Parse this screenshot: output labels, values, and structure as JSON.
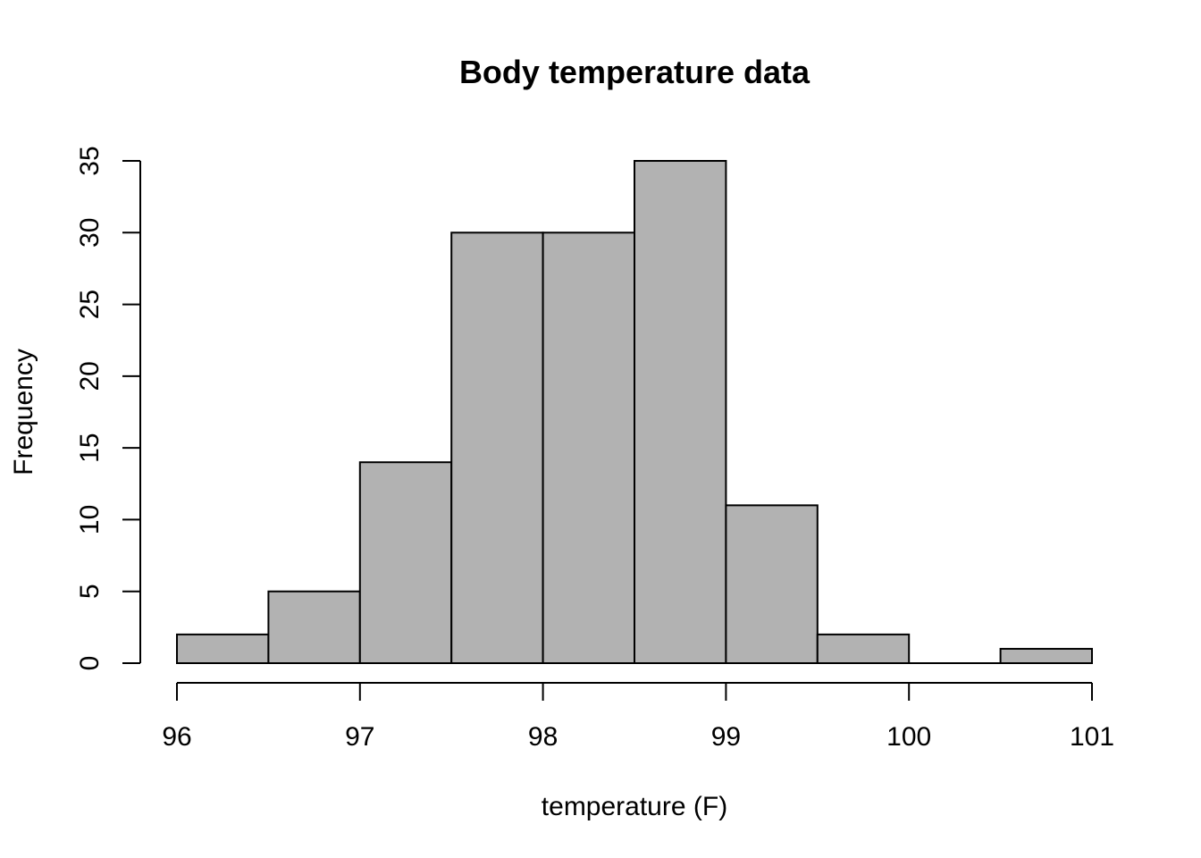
{
  "chart_data": {
    "type": "bar",
    "title": "Body temperature data",
    "xlabel": "temperature (F)",
    "ylabel": "Frequency",
    "bins": [
      {
        "start": 96.0,
        "end": 96.5,
        "count": 2
      },
      {
        "start": 96.5,
        "end": 97.0,
        "count": 5
      },
      {
        "start": 97.0,
        "end": 97.5,
        "count": 14
      },
      {
        "start": 97.5,
        "end": 98.0,
        "count": 30
      },
      {
        "start": 98.0,
        "end": 98.5,
        "count": 30
      },
      {
        "start": 98.5,
        "end": 99.0,
        "count": 35
      },
      {
        "start": 99.0,
        "end": 99.5,
        "count": 11
      },
      {
        "start": 99.5,
        "end": 100.0,
        "count": 2
      },
      {
        "start": 100.0,
        "end": 100.5,
        "count": 0
      },
      {
        "start": 100.5,
        "end": 101.0,
        "count": 1
      }
    ],
    "xlim": [
      96,
      101
    ],
    "ylim": [
      0,
      35
    ],
    "x_ticks": [
      "96",
      "97",
      "98",
      "99",
      "100",
      "101"
    ],
    "y_ticks": [
      "0",
      "5",
      "10",
      "15",
      "20",
      "25",
      "30",
      "35"
    ],
    "bar_color": "#b2b2b2",
    "grid": false,
    "legend": "none"
  }
}
